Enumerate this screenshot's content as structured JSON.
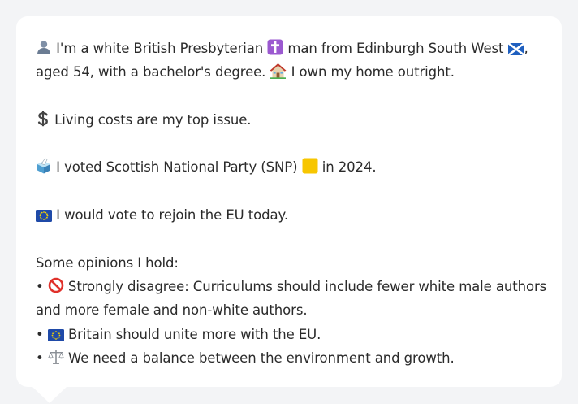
{
  "profile": {
    "intro_line1_a": "I'm a white British Presbyterian",
    "intro_line1_b": "man from Edinburgh South West",
    "intro_line2_a": "aged 54, with a bachelor's degree.",
    "intro_line2_b": "I own my home outright.",
    "issue": "Living costs are my top issue.",
    "vote_a": "I voted Scottish National Party (SNP)",
    "vote_b": "in 2024.",
    "eu": "I would vote to rejoin the EU today.",
    "opinions_heading": "Some opinions I hold:",
    "opinions": [
      {
        "bullet": "•",
        "text_line1": "Strongly disagree: Curriculums should include fewer white male authors",
        "text_line2": "and more female and non-white authors."
      },
      {
        "bullet": "•",
        "text_line1": "Britain should unite more with the EU."
      },
      {
        "bullet": "•",
        "text_line1": "We need a balance between the environment and growth."
      }
    ]
  },
  "icons": {
    "person": "bust-in-silhouette-icon",
    "religion": "latin-cross-icon",
    "region": "scotland-flag-icon",
    "home": "house-icon",
    "issue": "dollar-sign-icon",
    "vote": "ballot-box-icon",
    "party_color": "yellow-square-icon",
    "eu": "eu-flag-icon",
    "disagree": "no-entry-icon",
    "balance": "balance-scale-icon"
  },
  "colors": {
    "background": "#f3f4f6",
    "bubble": "#ffffff",
    "text": "#2b2b2b",
    "cross_box": "#9b59d0",
    "snp_yellow": "#f7c600",
    "eu_blue": "#1f4aa8",
    "scotland_blue": "#1f5fbf",
    "no_entry_red": "#e0312b"
  }
}
